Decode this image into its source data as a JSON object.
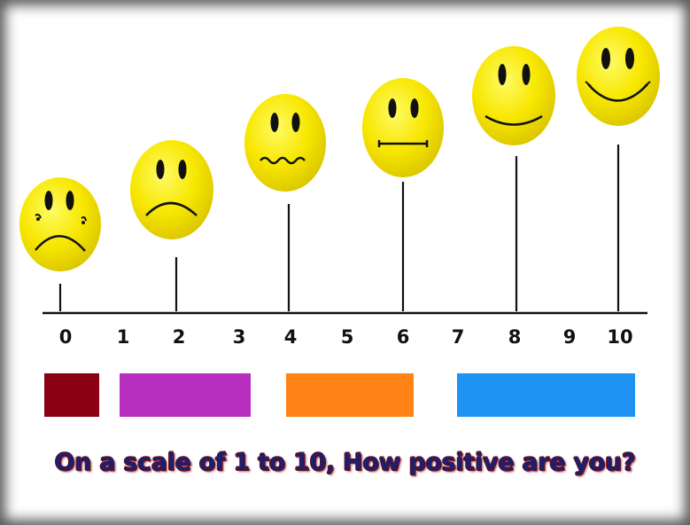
{
  "scale": {
    "ticks": [
      "0",
      "1",
      "2",
      "3",
      "4",
      "5",
      "6",
      "7",
      "8",
      "9",
      "10"
    ]
  },
  "faces": [
    {
      "rating": 0,
      "expression": "crying-face"
    },
    {
      "rating": 2,
      "expression": "sad-face"
    },
    {
      "rating": 4,
      "expression": "worried-face"
    },
    {
      "rating": 6,
      "expression": "neutral-face"
    },
    {
      "rating": 8,
      "expression": "smiling-face"
    },
    {
      "rating": 10,
      "expression": "happy-face"
    }
  ],
  "swatch_colors": [
    "#8b0012",
    "#b62fbf",
    "#ff8415",
    "#1f93f3"
  ],
  "caption": "On a scale of 1 to 10, How positive are you?"
}
